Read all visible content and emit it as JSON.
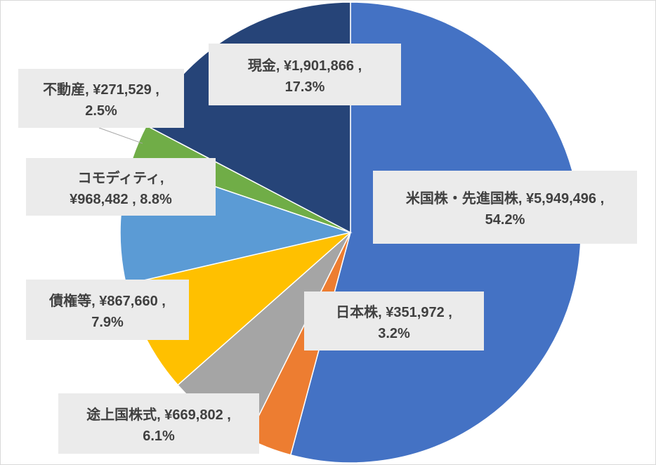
{
  "chart_data": {
    "type": "pie",
    "title": "",
    "start": "top-center",
    "direction": "clockwise",
    "slices": [
      {
        "name": "米国株・先進国株",
        "value": 5949496,
        "value_label": "¥5,949,496",
        "percent_label": "54.2%",
        "color": "#4472C4"
      },
      {
        "name": "日本株",
        "value": 351972,
        "value_label": "¥351,972",
        "percent_label": "3.2%",
        "color": "#ED7D31"
      },
      {
        "name": "途上国株式",
        "value": 669802,
        "value_label": "¥669,802",
        "percent_label": "6.1%",
        "color": "#A5A5A5"
      },
      {
        "name": "債権等",
        "value": 867660,
        "value_label": "¥867,660",
        "percent_label": "7.9%",
        "color": "#FFC000"
      },
      {
        "name": "コモディティ",
        "value": 968482,
        "value_label": "¥968,482",
        "percent_label": "8.8%",
        "color": "#5B9BD5"
      },
      {
        "name": "不動産",
        "value": 271529,
        "value_label": "¥271,529",
        "percent_label": "2.5%",
        "color": "#70AD47"
      },
      {
        "name": "現金",
        "value": 1901866,
        "value_label": "¥1,901,866",
        "percent_label": "17.3%",
        "color": "#264478"
      }
    ],
    "data_labels": [
      {
        "line1": "米国株・先進国株, ¥5,949,496 ,",
        "line2": "54.2%"
      },
      {
        "line1": "日本株, ¥351,972 ,",
        "line2": "3.2%"
      },
      {
        "line1": "途上国株式, ¥669,802 ,",
        "line2": "6.1%"
      },
      {
        "line1": "債権等, ¥867,660 ,",
        "line2": "7.9%"
      },
      {
        "line1": "コモディティ,",
        "line2": "¥968,482 , 8.8%"
      },
      {
        "line1": "不動産, ¥271,529 ,",
        "line2": "2.5%"
      },
      {
        "line1": "現金, ¥1,901,866 ,",
        "line2": "17.3%"
      }
    ],
    "label_box_color": "#EBEBEB",
    "legend": "none"
  }
}
